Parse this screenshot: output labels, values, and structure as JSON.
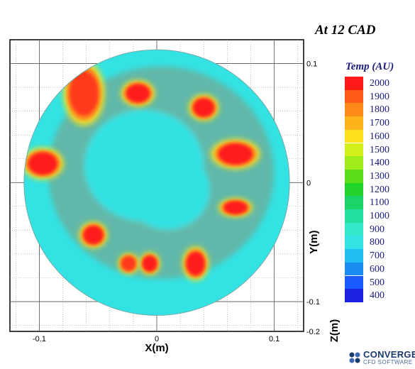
{
  "title": "At 12 CAD",
  "chart_data": {
    "type": "heatmap",
    "title": "At 12 CAD",
    "xlabel": "X(m)",
    "ylabel": "Y(m)",
    "zlabel": "Z(m)",
    "xlim": [
      -0.125,
      0.125
    ],
    "ylim": [
      -0.125,
      0.12
    ],
    "x_ticks": [
      "-0.1",
      "0",
      "0.1"
    ],
    "y_ticks": [
      "0.1",
      "0",
      "-0.1",
      "-0.2"
    ],
    "grid": true,
    "cylinder_radius": 0.113,
    "colorbar": {
      "title": "Temp (AU)",
      "labels": [
        "2000",
        "1900",
        "1800",
        "1700",
        "1600",
        "1500",
        "1400",
        "1300",
        "1200",
        "1100",
        "1000",
        "900",
        "800",
        "700",
        "600",
        "500",
        "400"
      ],
      "colors": [
        "#ff1a1a",
        "#ff5a1a",
        "#ff8a1a",
        "#ffb31a",
        "#ffe01a",
        "#d4f01a",
        "#a0ec1a",
        "#5cdd1a",
        "#22d42a",
        "#1ad46a",
        "#22e0a0",
        "#33e8c8",
        "#33e2e2",
        "#22c0f0",
        "#1a8ef0",
        "#1a5aff",
        "#1a22e0"
      ]
    },
    "hot_spots": [
      {
        "x": -0.062,
        "y": 0.075,
        "temp": 1900
      },
      {
        "x": -0.016,
        "y": 0.075,
        "temp": 2000
      },
      {
        "x": 0.04,
        "y": 0.063,
        "temp": 2000
      },
      {
        "x": -0.097,
        "y": 0.016,
        "temp": 2000
      },
      {
        "x": 0.067,
        "y": 0.024,
        "temp": 2000
      },
      {
        "x": 0.067,
        "y": -0.021,
        "temp": 1950
      },
      {
        "x": -0.054,
        "y": -0.044,
        "temp": 1950
      },
      {
        "x": -0.024,
        "y": -0.068,
        "temp": 1900
      },
      {
        "x": -0.006,
        "y": -0.068,
        "temp": 2000
      },
      {
        "x": 0.033,
        "y": -0.068,
        "temp": 2000
      }
    ]
  },
  "legend": {
    "title": "Temp (AU)"
  },
  "branding": {
    "name": "CONVERGE",
    "tagline": "CFD SOFTWARE"
  }
}
